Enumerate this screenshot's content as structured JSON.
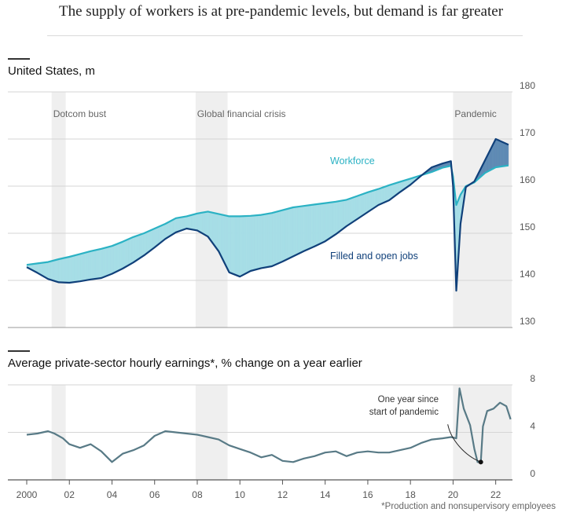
{
  "headline": "The supply of workers is at pre-pandemic levels, but demand is far greater",
  "footnote": "*Production and nonsupervisory employees",
  "colors": {
    "workforce": "#2bb2c4",
    "jobs": "#10407a",
    "gap_light": "#a6dde6",
    "gap_dark": "#5e8ab4",
    "earnings": "#587a86",
    "band": "#efefef",
    "grid": "#d6d6d6"
  },
  "chart_data": [
    {
      "type": "line",
      "title": "United States, m",
      "ylim": [
        130,
        180
      ],
      "y_ticks": [
        "130",
        "140",
        "150",
        "160",
        "170",
        "180"
      ],
      "x_ticks": [
        "2000",
        "02",
        "04",
        "06",
        "08",
        "10",
        "12",
        "14",
        "16",
        "18",
        "20",
        "22"
      ],
      "xlim": [
        2000,
        2022.75
      ],
      "recession_bands": [
        {
          "label": "Dotcom bust",
          "start": 2001.17,
          "end": 2001.83
        },
        {
          "label": "Global financial crisis",
          "start": 2007.92,
          "end": 2009.42
        },
        {
          "label": "Pandemic",
          "start": 2020.0,
          "end": 2022.75
        }
      ],
      "series": [
        {
          "name": "Workforce",
          "x": [
            2000.0,
            2000.5,
            2001.0,
            2001.5,
            2002.0,
            2002.5,
            2003.0,
            2003.5,
            2004.0,
            2004.5,
            2005.0,
            2005.5,
            2006.0,
            2006.5,
            2007.0,
            2007.5,
            2008.0,
            2008.5,
            2009.0,
            2009.5,
            2010.0,
            2010.5,
            2011.0,
            2011.5,
            2012.0,
            2012.5,
            2013.0,
            2013.5,
            2014.0,
            2014.5,
            2015.0,
            2015.5,
            2016.0,
            2016.5,
            2017.0,
            2017.5,
            2018.0,
            2018.5,
            2019.0,
            2019.5,
            2019.9,
            2020.0,
            2020.15,
            2020.35,
            2020.6,
            2021.0,
            2021.5,
            2022.0,
            2022.6
          ],
          "values": [
            143.3,
            143.6,
            143.9,
            144.5,
            145.0,
            145.6,
            146.2,
            146.7,
            147.3,
            148.2,
            149.2,
            150.0,
            151.0,
            152.0,
            153.2,
            153.6,
            154.2,
            154.6,
            154.1,
            153.6,
            153.6,
            153.7,
            153.9,
            154.3,
            154.9,
            155.5,
            155.8,
            156.1,
            156.4,
            156.7,
            157.1,
            157.9,
            158.7,
            159.4,
            160.2,
            160.9,
            161.6,
            162.3,
            163.0,
            163.9,
            164.3,
            162.0,
            156.0,
            158.2,
            160.0,
            160.8,
            162.8,
            164.0,
            164.4
          ]
        },
        {
          "name": "Filled and open jobs",
          "x": [
            2000.0,
            2000.5,
            2001.0,
            2001.5,
            2002.0,
            2002.5,
            2003.0,
            2003.5,
            2004.0,
            2004.5,
            2005.0,
            2005.5,
            2006.0,
            2006.5,
            2007.0,
            2007.5,
            2008.0,
            2008.5,
            2009.0,
            2009.5,
            2010.0,
            2010.5,
            2011.0,
            2011.5,
            2012.0,
            2012.5,
            2013.0,
            2013.5,
            2014.0,
            2014.5,
            2015.0,
            2015.5,
            2016.0,
            2016.5,
            2017.0,
            2017.5,
            2018.0,
            2018.5,
            2019.0,
            2019.5,
            2019.9,
            2020.0,
            2020.15,
            2020.35,
            2020.6,
            2021.0,
            2021.5,
            2022.0,
            2022.6
          ],
          "values": [
            142.8,
            141.6,
            140.3,
            139.6,
            139.5,
            139.8,
            140.2,
            140.5,
            141.4,
            142.5,
            143.8,
            145.3,
            147.0,
            148.8,
            150.2,
            151.0,
            150.6,
            149.3,
            146.2,
            141.7,
            140.8,
            142.0,
            142.6,
            143.0,
            144.0,
            145.1,
            146.2,
            147.2,
            148.3,
            149.8,
            151.5,
            153.0,
            154.5,
            156.0,
            157.0,
            158.7,
            160.3,
            162.2,
            164.0,
            164.8,
            165.3,
            160.0,
            137.8,
            152.0,
            159.8,
            161.0,
            165.5,
            170.0,
            168.8
          ]
        }
      ]
    },
    {
      "type": "line",
      "title": "Average private-sector hourly earnings*, % change on a year earlier",
      "ylim": [
        0,
        8
      ],
      "y_ticks": [
        "0",
        "4",
        "8"
      ],
      "x_ticks": [
        "2000",
        "02",
        "04",
        "06",
        "08",
        "10",
        "12",
        "14",
        "16",
        "18",
        "20",
        "22"
      ],
      "xlim": [
        2000,
        2022.75
      ],
      "recession_bands": [
        {
          "start": 2001.17,
          "end": 2001.83
        },
        {
          "start": 2007.92,
          "end": 2009.42
        },
        {
          "start": 2020.0,
          "end": 2022.75
        }
      ],
      "annotation": {
        "lines": [
          "One year since",
          "start of pandemic"
        ],
        "x": 2021.3,
        "y": 1.5
      },
      "series": [
        {
          "name": "Average hourly earnings",
          "x": [
            2000.0,
            2000.5,
            2001.0,
            2001.3,
            2001.7,
            2002.0,
            2002.5,
            2003.0,
            2003.5,
            2004.0,
            2004.5,
            2005.0,
            2005.5,
            2006.0,
            2006.5,
            2007.0,
            2007.5,
            2008.0,
            2008.5,
            2009.0,
            2009.5,
            2010.0,
            2010.5,
            2011.0,
            2011.5,
            2012.0,
            2012.5,
            2013.0,
            2013.5,
            2014.0,
            2014.5,
            2015.0,
            2015.5,
            2016.0,
            2016.5,
            2017.0,
            2017.5,
            2018.0,
            2018.5,
            2019.0,
            2019.5,
            2019.9,
            2020.15,
            2020.3,
            2020.5,
            2020.8,
            2021.0,
            2021.15,
            2021.3,
            2021.4,
            2021.6,
            2021.9,
            2022.2,
            2022.5,
            2022.7
          ],
          "values": [
            3.8,
            3.9,
            4.1,
            3.9,
            3.5,
            3.0,
            2.7,
            3.0,
            2.4,
            1.5,
            2.2,
            2.5,
            2.9,
            3.7,
            4.1,
            4.0,
            3.9,
            3.8,
            3.6,
            3.4,
            2.9,
            2.6,
            2.3,
            1.9,
            2.1,
            1.6,
            1.5,
            1.8,
            2.0,
            2.3,
            2.4,
            2.0,
            2.3,
            2.4,
            2.3,
            2.3,
            2.5,
            2.7,
            3.1,
            3.4,
            3.5,
            3.6,
            3.5,
            7.7,
            6.0,
            4.6,
            2.6,
            1.5,
            1.5,
            4.5,
            5.8,
            6.0,
            6.5,
            6.2,
            5.1
          ]
        }
      ]
    }
  ]
}
